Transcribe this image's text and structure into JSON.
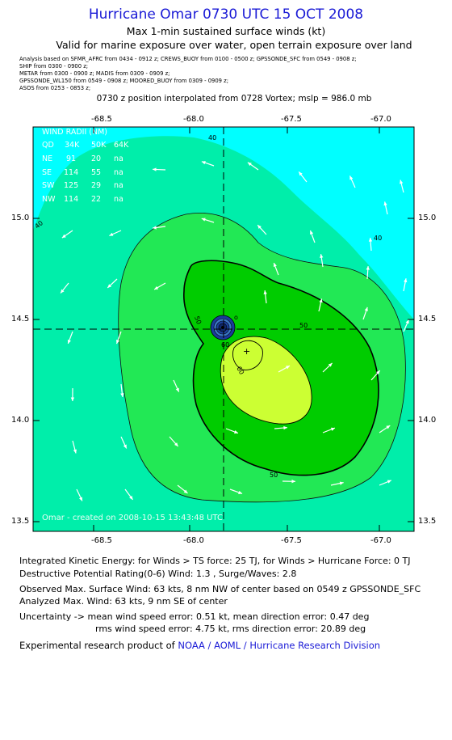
{
  "header": {
    "title": "Hurricane Omar 0730 UTC 15 OCT 2008",
    "subtitle": "Max 1-min sustained surface winds (kt)",
    "validity": "Valid for marine exposure over water, open terrain exposure over land"
  },
  "sources": [
    "Analysis based on  SFMR_AFRC from 0434 - 0912 z;  CREWS_BUOY from 0100 - 0500 z;  GPSSONDE_SFC from 0549 - 0908 z;",
    "SHIP from 0300 - 0900 z;",
    "METAR from 0300 - 0900 z;   MADIS from 0309 - 0909 z;",
    "GPSSONDE_WL150 from 0549 - 0908 z;  MOORED_BUOY from 0309 - 0909 z;",
    "ASOS from 0253 - 0853 z;"
  ],
  "position_note": "0730 z position interpolated from 0728 Vortex; mslp = 986.0 mb",
  "map": {
    "lon_ticks": [
      "-68.5",
      "-68.0",
      "-67.5",
      "-67.0"
    ],
    "lat_ticks": [
      "15.0",
      "14.5",
      "14.0",
      "13.5"
    ],
    "lon_range": [
      -68.9,
      -66.9
    ],
    "lat_range": [
      13.45,
      15.45
    ],
    "center": {
      "lon": -67.84,
      "lat": 14.45
    },
    "contour_labels": [
      "40",
      "40",
      "40",
      "50",
      "50",
      "60",
      "60",
      "50"
    ],
    "credit": "Omar  -  created on 2008-10-15 13:43:48 UTC",
    "wind_radii": {
      "header": [
        "WIND RADII (NM)"
      ],
      "rows": [
        [
          "QD",
          "34K",
          "50K",
          "64K"
        ],
        [
          "NE",
          "91",
          "20",
          "na"
        ],
        [
          "SE",
          "114",
          "55",
          "na"
        ],
        [
          "SW",
          "125",
          "29",
          "na"
        ],
        [
          "NW",
          "114",
          "22",
          "na"
        ]
      ]
    },
    "colors": {
      "cyan": "#00ffff",
      "aqua_green": "#00eeaa",
      "green_40": "#22e855",
      "green_50": "#00cc00",
      "yellow_green": "#ccff33"
    }
  },
  "stats": {
    "ike": "Integrated Kinetic Energy:  for Winds > TS force: 25 TJ,  for Winds > Hurricane Force: 0 TJ",
    "dpr": "Destructive Potential Rating(0-6)   Wind: 1.3 , Surge/Waves: 2.8",
    "obs_max": "Observed Max. Surface Wind: 63 kts, 8 nm NW of center based on 0549 z GPSSONDE_SFC",
    "ana_max": "Analyzed Max. Wind: 63 kts, 9 nm SE of center",
    "unc1": "Uncertainty -> mean wind speed error: 0.51 kt,   mean direction error: 0.47 deg",
    "unc2": "rms wind speed error: 4.75 kt,   rms direction error: 20.89 deg",
    "footer_prefix": "Experimental research product of ",
    "footer_org": "NOAA / AOML / Hurricane Research Division"
  }
}
